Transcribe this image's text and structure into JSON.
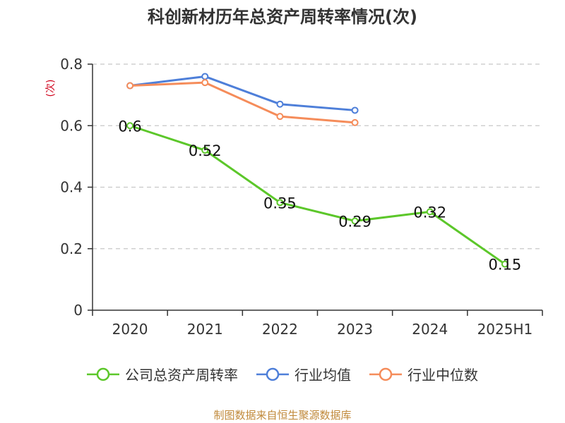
{
  "source_note": "制图数据来自恒生聚源数据库",
  "chart_data": {
    "type": "line",
    "title": "科创新材历年总资产周转率情况(次)",
    "ylabel": "(次)",
    "categories": [
      "2020",
      "2021",
      "2022",
      "2023",
      "2024",
      "2025H1"
    ],
    "ylim": [
      0,
      0.8
    ],
    "yticks": [
      0,
      0.2,
      0.4,
      0.6,
      0.8
    ],
    "ytick_labels": [
      "0",
      "0.2",
      "0.4",
      "0.6",
      "0.8"
    ],
    "grid": true,
    "legend_position": "bottom",
    "series": [
      {
        "name": "公司总资产周转率",
        "color": "#5cc72a",
        "values": [
          0.6,
          0.52,
          0.35,
          0.29,
          0.32,
          0.15
        ],
        "labels": [
          "0.6",
          "0.52",
          "0.35",
          "0.29",
          "0.32",
          "0.15"
        ]
      },
      {
        "name": "行业均值",
        "color": "#4e7fd9",
        "values": [
          0.73,
          0.76,
          0.67,
          0.65,
          null,
          null
        ]
      },
      {
        "name": "行业中位数",
        "color": "#f58c5a",
        "values": [
          0.73,
          0.74,
          0.63,
          0.61,
          null,
          null
        ]
      }
    ]
  }
}
